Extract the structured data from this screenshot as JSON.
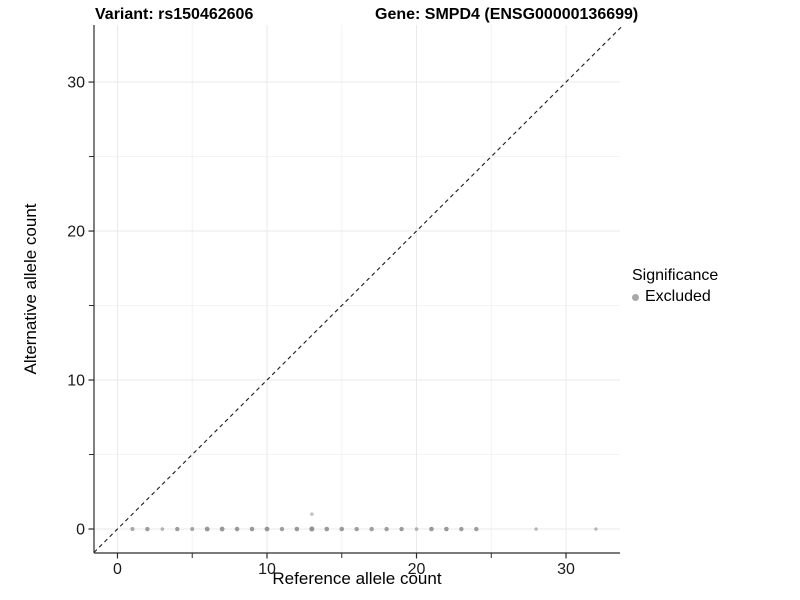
{
  "titles": {
    "variant": "Variant: rs150462606",
    "gene": "Gene: SMPD4 (ENSG00000136699)"
  },
  "axes": {
    "x_label": "Reference allele count",
    "y_label": "Alternative allele count"
  },
  "legend": {
    "title": "Significance",
    "items": [
      {
        "label": "Excluded",
        "color": "#a8a8a8"
      }
    ]
  },
  "chart_data": {
    "type": "scatter",
    "title": "Variant: rs150462606 / Gene: SMPD4 (ENSG00000136699)",
    "xlabel": "Reference allele count",
    "ylabel": "Alternative allele count",
    "xlim": [
      -1.57,
      33.61
    ],
    "ylim": [
      -1.61,
      33.83
    ],
    "x_ticks": [
      0,
      10,
      20,
      30
    ],
    "y_ticks": [
      0,
      10,
      20,
      30
    ],
    "x_minor_ticks": [
      5,
      15,
      25
    ],
    "y_minor_ticks": [
      5,
      15,
      25
    ],
    "grid": true,
    "grid_major_color": "#eaeaea",
    "grid_minor_color": "#f2f2f2",
    "axis_color": "#2b2b2b",
    "tick_label_color": "#1a1a1a",
    "legend_position": "right",
    "identity_line": {
      "style": "dashed",
      "color": "#1a1a1a",
      "from": [
        -1.57,
        -1.57
      ],
      "to": [
        33.7,
        33.7
      ]
    },
    "series": [
      {
        "name": "Excluded",
        "points": [
          {
            "x": 1,
            "y": 0,
            "r": 2.0,
            "color": "#a6a6a6"
          },
          {
            "x": 2,
            "y": 0,
            "r": 2.2,
            "color": "#9c9c9c"
          },
          {
            "x": 3,
            "y": 0,
            "r": 1.8,
            "color": "#b2b2b2"
          },
          {
            "x": 4,
            "y": 0,
            "r": 2.2,
            "color": "#9c9c9c"
          },
          {
            "x": 5,
            "y": 0,
            "r": 2.0,
            "color": "#a3a3a3"
          },
          {
            "x": 6,
            "y": 0,
            "r": 2.4,
            "color": "#979797"
          },
          {
            "x": 7,
            "y": 0,
            "r": 2.4,
            "color": "#979797"
          },
          {
            "x": 8,
            "y": 0,
            "r": 2.3,
            "color": "#999999"
          },
          {
            "x": 9,
            "y": 0,
            "r": 2.3,
            "color": "#999999"
          },
          {
            "x": 10,
            "y": 0,
            "r": 2.4,
            "color": "#979797"
          },
          {
            "x": 11,
            "y": 0,
            "r": 2.2,
            "color": "#9e9e9e"
          },
          {
            "x": 12,
            "y": 0,
            "r": 2.3,
            "color": "#999999"
          },
          {
            "x": 13,
            "y": 0,
            "r": 2.5,
            "color": "#929292"
          },
          {
            "x": 13,
            "y": 1,
            "r": 1.8,
            "color": "#c3c3c3"
          },
          {
            "x": 14,
            "y": 0,
            "r": 2.3,
            "color": "#999999"
          },
          {
            "x": 15,
            "y": 0,
            "r": 2.3,
            "color": "#999999"
          },
          {
            "x": 16,
            "y": 0,
            "r": 2.2,
            "color": "#9e9e9e"
          },
          {
            "x": 17,
            "y": 0,
            "r": 2.2,
            "color": "#9e9e9e"
          },
          {
            "x": 18,
            "y": 0,
            "r": 2.2,
            "color": "#9e9e9e"
          },
          {
            "x": 19,
            "y": 0,
            "r": 2.2,
            "color": "#9c9c9c"
          },
          {
            "x": 20,
            "y": 0,
            "r": 1.8,
            "color": "#b0b0b0"
          },
          {
            "x": 21,
            "y": 0,
            "r": 2.3,
            "color": "#999999"
          },
          {
            "x": 22,
            "y": 0,
            "r": 2.3,
            "color": "#999999"
          },
          {
            "x": 23,
            "y": 0,
            "r": 2.2,
            "color": "#9c9c9c"
          },
          {
            "x": 24,
            "y": 0,
            "r": 2.2,
            "color": "#9c9c9c"
          },
          {
            "x": 28,
            "y": 0,
            "r": 1.7,
            "color": "#b5b5b5"
          },
          {
            "x": 32,
            "y": 0,
            "r": 1.7,
            "color": "#b5b5b5"
          }
        ]
      }
    ]
  }
}
